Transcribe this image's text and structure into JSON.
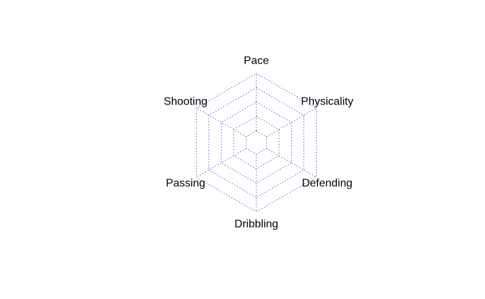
{
  "chart_data": {
    "type": "radar",
    "axes": [
      "Pace",
      "Physicality",
      "Defending",
      "Dribbling",
      "Passing",
      "Shooting"
    ],
    "rings": 5,
    "series": [],
    "grid": true,
    "grid_style": "dotted",
    "grid_color": "#3333cc",
    "background": "#ffffff",
    "label_color": "#000000"
  }
}
